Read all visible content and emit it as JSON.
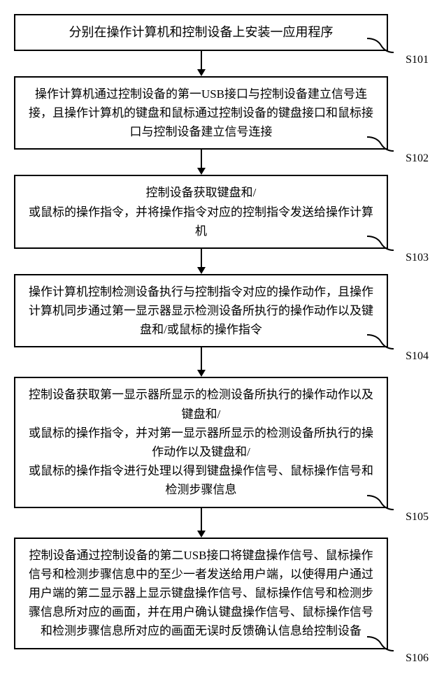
{
  "flowchart": {
    "type": "flowchart",
    "box_border_color": "#000000",
    "box_border_width": 2,
    "background_color": "#ffffff",
    "arrow_color": "#000000",
    "arrow_length": 36,
    "tail_curve_color": "#000000",
    "font_family": "SimSun",
    "font_size": 17,
    "steps": [
      {
        "id": "s101",
        "label": "S101",
        "text": "分别在操作计算机和控制设备上安装一应用程序"
      },
      {
        "id": "s102",
        "label": "S102",
        "text": "操作计算机通过控制设备的第一USB接口与控制设备建立信号连接，且操作计算机的键盘和鼠标通过控制设备的键盘接口和鼠标接口与控制设备建立信号连接"
      },
      {
        "id": "s103",
        "label": "S103",
        "text": "控制设备获取键盘和/\n或鼠标的操作指令，并将操作指令对应的控制指令发送给操作计算机"
      },
      {
        "id": "s104",
        "label": "S104",
        "text": "操作计算机控制检测设备执行与控制指令对应的操作动作，且操作计算机同步通过第一显示器显示检测设备所执行的操作动作以及键盘和/或鼠标的操作指令"
      },
      {
        "id": "s105",
        "label": "S105",
        "text": "控制设备获取第一显示器所显示的检测设备所执行的操作动作以及键盘和/\n或鼠标的操作指令，并对第一显示器所显示的检测设备所执行的操作动作以及键盘和/\n或鼠标的操作指令进行处理以得到键盘操作信号、鼠标操作信号和检测步骤信息"
      },
      {
        "id": "s106",
        "label": "S106",
        "text": "控制设备通过控制设备的第二USB接口将键盘操作信号、鼠标操作信号和检测步骤信息中的至少一者发送给用户端，以使得用户通过用户端的第二显示器上显示键盘操作信号、鼠标操作信号和检测步骤信息所对应的画面，并在用户确认键盘操作信号、鼠标操作信号和检测步骤信息所对应的画面无误时反馈确认信息给控制设备"
      }
    ]
  }
}
